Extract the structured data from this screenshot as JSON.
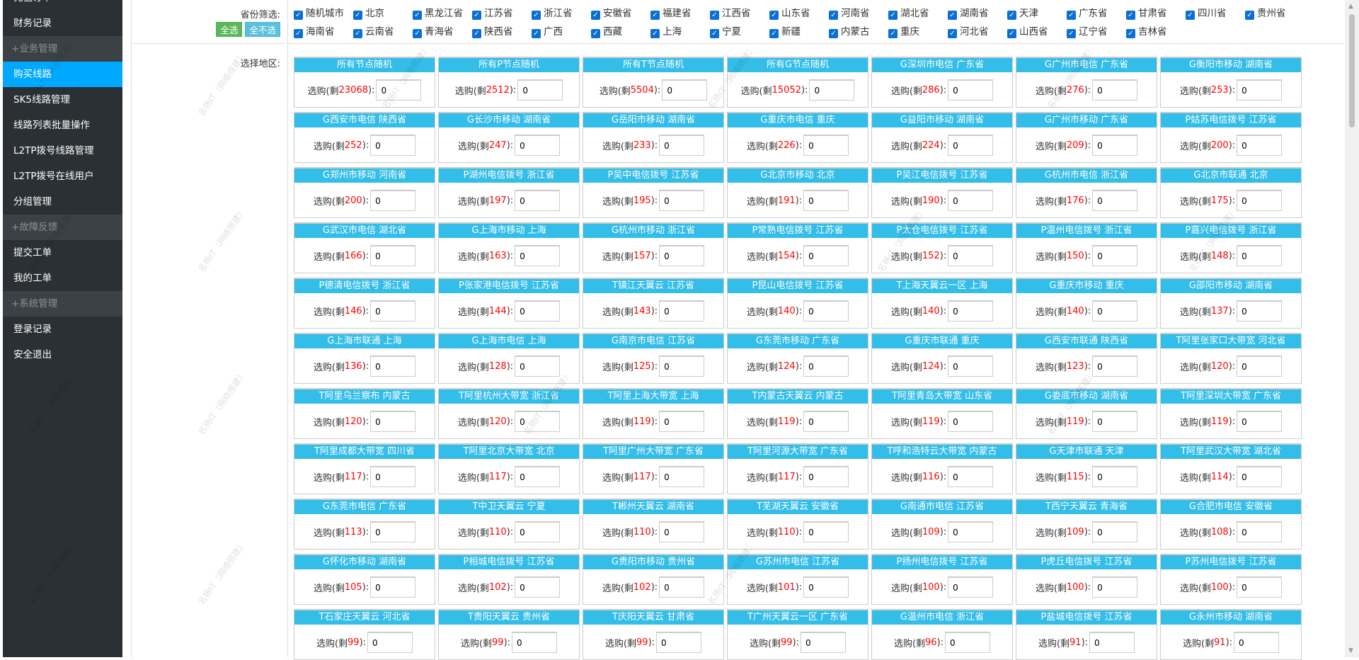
{
  "sidebar": {
    "items": [
      {
        "label": "充值订单",
        "type": "item"
      },
      {
        "label": "财务记录",
        "type": "item"
      },
      {
        "label": "+业务管理",
        "type": "group"
      },
      {
        "label": "购买线路",
        "type": "active"
      },
      {
        "label": "SK5线路管理",
        "type": "item"
      },
      {
        "label": "线路列表批量操作",
        "type": "item"
      },
      {
        "label": "L2TP拨号线路管理",
        "type": "item"
      },
      {
        "label": "L2TP拨号在线用户",
        "type": "item"
      },
      {
        "label": "分组管理",
        "type": "item"
      },
      {
        "label": "+故障反馈",
        "type": "group"
      },
      {
        "label": "提交工单",
        "type": "item"
      },
      {
        "label": "我的工单",
        "type": "item"
      },
      {
        "label": "+系统管理",
        "type": "group"
      },
      {
        "label": "登录记录",
        "type": "item"
      },
      {
        "label": "安全退出",
        "type": "item"
      }
    ]
  },
  "filter": {
    "label": "省份筛选:",
    "select_all": "全选",
    "select_none": "全不选",
    "provinces": [
      "随机城市",
      "北京",
      "黑龙江省",
      "江苏省",
      "浙江省",
      "安徽省",
      "福建省",
      "江西省",
      "山东省",
      "河南省",
      "湖北省",
      "湖南省",
      "天津",
      "广东省",
      "甘肃省",
      "四川省",
      "贵州省",
      "海南省",
      "云南省",
      "青海省",
      "陕西省",
      "广西",
      "西藏",
      "上海",
      "宁夏",
      "新疆",
      "内蒙古",
      "重庆",
      "河北省",
      "山西省",
      "辽宁省",
      "吉林省"
    ],
    "checked": true
  },
  "area": {
    "label": "选择地区:",
    "buy_prefix": "选购(剩",
    "buy_suffix": "):",
    "default_qty": "0",
    "cells": [
      [
        "所有节点随机",
        23068
      ],
      [
        "所有P节点随机",
        2512
      ],
      [
        "所有T节点随机",
        5504
      ],
      [
        "所有G节点随机",
        15052
      ],
      [
        "G深圳市电信 广东省",
        286
      ],
      [
        "G广州市电信 广东省",
        276
      ],
      [
        "G衡阳市移动 湖南省",
        253
      ],
      [
        "G西安市电信 陕西省",
        252
      ],
      [
        "G长沙市移动 湖南省",
        247
      ],
      [
        "G岳阳市移动 湖南省",
        233
      ],
      [
        "G重庆市电信 重庆",
        226
      ],
      [
        "G益阳市移动 湖南省",
        224
      ],
      [
        "G广州市移动 广东省",
        209
      ],
      [
        "P姑苏电信拨号 江苏省",
        200
      ],
      [
        "G郑州市移动 河南省",
        200
      ],
      [
        "P湖州电信拨号 浙江省",
        197
      ],
      [
        "P吴中电信拨号 江苏省",
        195
      ],
      [
        "G北京市移动 北京",
        191
      ],
      [
        "P吴江电信拨号 江苏省",
        190
      ],
      [
        "G杭州市电信 浙江省",
        176
      ],
      [
        "G北京市联通 北京",
        175
      ],
      [
        "G武汉市电信 湖北省",
        166
      ],
      [
        "G上海市移动 上海",
        163
      ],
      [
        "G杭州市移动 浙江省",
        157
      ],
      [
        "P常熟电信拨号 江苏省",
        154
      ],
      [
        "P太仓电信拨号 江苏省",
        152
      ],
      [
        "P温州电信拨号 浙江省",
        150
      ],
      [
        "P嘉兴电信拨号 浙江省",
        148
      ],
      [
        "P德清电信拨号 浙江省",
        146
      ],
      [
        "P张家港电信拨号 江苏省",
        144
      ],
      [
        "T镇江天翼云 江苏省",
        143
      ],
      [
        "P昆山电信拨号 江苏省",
        140
      ],
      [
        "T上海天翼云一区 上海",
        140
      ],
      [
        "G重庆市移动 重庆",
        140
      ],
      [
        "G邵阳市移动 湖南省",
        137
      ],
      [
        "G上海市联通 上海",
        136
      ],
      [
        "G上海市电信 上海",
        128
      ],
      [
        "G南京市电信 江苏省",
        125
      ],
      [
        "G东莞市移动 广东省",
        124
      ],
      [
        "G重庆市联通 重庆",
        124
      ],
      [
        "G西安市联通 陕西省",
        123
      ],
      [
        "T阿里张家口大带宽 河北省",
        120
      ],
      [
        "T阿里乌兰察布 内蒙古",
        120
      ],
      [
        "T阿里杭州大带宽 浙江省",
        120
      ],
      [
        "T阿里上海大带宽 上海",
        119
      ],
      [
        "T内蒙古天翼云 内蒙古",
        119
      ],
      [
        "T阿里青岛大带宽 山东省",
        119
      ],
      [
        "G娄底市移动 湖南省",
        119
      ],
      [
        "T阿里深圳大带宽 广东省",
        119
      ],
      [
        "T阿里成都大带宽 四川省",
        117
      ],
      [
        "T阿里北京大带宽 北京",
        117
      ],
      [
        "T阿里广州大带宽 广东省",
        117
      ],
      [
        "T阿里河源大带宽 广东省",
        117
      ],
      [
        "T呼和浩特云大带宽 内蒙古",
        116
      ],
      [
        "G天津市联通 天津",
        115
      ],
      [
        "T阿里武汉大带宽 湖北省",
        114
      ],
      [
        "G东莞市电信 广东省",
        113
      ],
      [
        "T中卫天翼云 宁夏",
        110
      ],
      [
        "T郴州天翼云 湖南省",
        110
      ],
      [
        "T芜湖天翼云 安徽省",
        110
      ],
      [
        "G南通市电信 江苏省",
        109
      ],
      [
        "T西宁天翼云 青海省",
        109
      ],
      [
        "G合肥市电信 安徽省",
        108
      ],
      [
        "G怀化市移动 湖南省",
        105
      ],
      [
        "P相城电信拨号 江苏省",
        102
      ],
      [
        "G贵阳市移动 贵州省",
        102
      ],
      [
        "G苏州市电信 江苏省",
        101
      ],
      [
        "P扬州电信拨号 江苏省",
        100
      ],
      [
        "P虎丘电信拨号 江苏省",
        100
      ],
      [
        "P苏州电信拨号 江苏省",
        100
      ],
      [
        "T石家庄天翼云 河北省",
        99
      ],
      [
        "T贵阳天翼云 贵州省",
        99
      ],
      [
        "T庆阳天翼云 甘肃省",
        99
      ],
      [
        "T广州天翼云一区 广东省",
        99
      ],
      [
        "G温州市电信 浙江省",
        96
      ],
      [
        "P盐城电信拨号 江苏省",
        91
      ],
      [
        "G永州市移动 湖南省",
        91
      ]
    ]
  },
  "watermark": "名扬IT（网络搭建）",
  "colors": {
    "sidebar_bg": "#2b3034",
    "active": "#00a8ff",
    "cell_header": "#33bde9",
    "remain": "#ff0000",
    "btn_all": "#5cb85c",
    "btn_none": "#5bc0de"
  }
}
